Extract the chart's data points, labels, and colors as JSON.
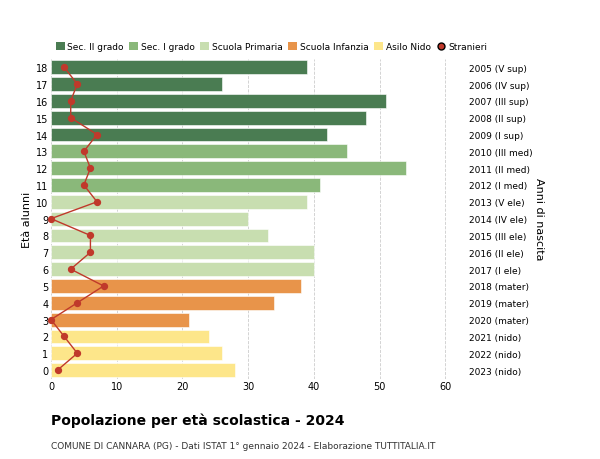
{
  "ages": [
    0,
    1,
    2,
    3,
    4,
    5,
    6,
    7,
    8,
    9,
    10,
    11,
    12,
    13,
    14,
    15,
    16,
    17,
    18
  ],
  "bar_values": [
    28,
    26,
    24,
    21,
    34,
    38,
    40,
    40,
    33,
    30,
    39,
    41,
    54,
    45,
    42,
    48,
    51,
    26,
    39
  ],
  "stranieri_values": [
    1,
    4,
    2,
    0,
    4,
    8,
    3,
    6,
    6,
    0,
    7,
    5,
    6,
    5,
    7,
    3,
    3,
    4,
    2
  ],
  "bar_colors": [
    "#fde68a",
    "#fde68a",
    "#fde68a",
    "#e8944a",
    "#e8944a",
    "#e8944a",
    "#c8deb0",
    "#c8deb0",
    "#c8deb0",
    "#c8deb0",
    "#c8deb0",
    "#8ab87a",
    "#8ab87a",
    "#8ab87a",
    "#4a7c52",
    "#4a7c52",
    "#4a7c52",
    "#4a7c52",
    "#4a7c52"
  ],
  "right_labels": [
    "2023 (nido)",
    "2022 (nido)",
    "2021 (nido)",
    "2020 (mater)",
    "2019 (mater)",
    "2018 (mater)",
    "2017 (I ele)",
    "2016 (II ele)",
    "2015 (III ele)",
    "2014 (IV ele)",
    "2013 (V ele)",
    "2012 (I med)",
    "2011 (II med)",
    "2010 (III med)",
    "2009 (I sup)",
    "2008 (II sup)",
    "2007 (III sup)",
    "2006 (IV sup)",
    "2005 (V sup)"
  ],
  "legend_labels": [
    "Sec. II grado",
    "Sec. I grado",
    "Scuola Primaria",
    "Scuola Infanzia",
    "Asilo Nido",
    "Stranieri"
  ],
  "legend_colors": [
    "#4a7c52",
    "#8ab87a",
    "#c8deb0",
    "#e8944a",
    "#fde68a",
    "#c0392b"
  ],
  "xlabel_values": [
    0,
    10,
    20,
    30,
    40,
    50,
    60
  ],
  "ylabel": "Età alunni",
  "right_ylabel": "Anni di nascita",
  "title": "Popolazione per età scolastica - 2024",
  "subtitle": "COMUNE DI CANNARA (PG) - Dati ISTAT 1° gennaio 2024 - Elaborazione TUTTITALIA.IT",
  "xlim": [
    0,
    63
  ],
  "background_color": "#ffffff",
  "grid_color": "#cccccc",
  "stranieri_color": "#c0392b"
}
